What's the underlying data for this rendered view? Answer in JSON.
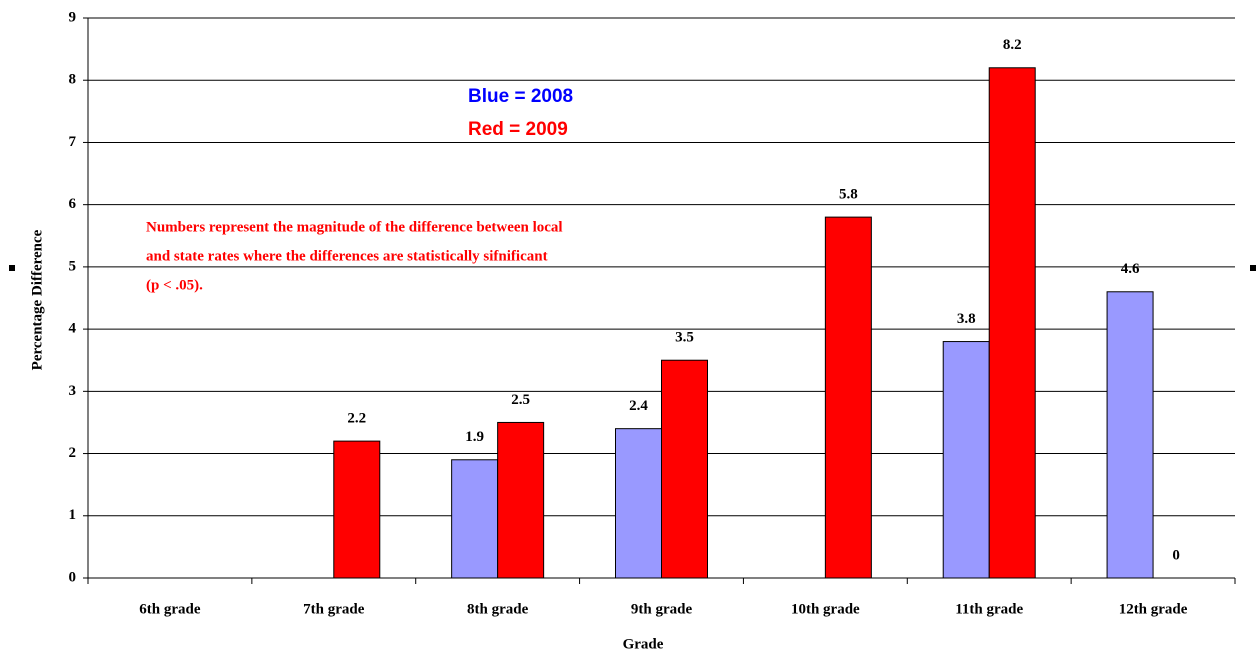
{
  "chart_data": {
    "type": "bar",
    "x_label": "Grade",
    "y_label": "Percentage Difference",
    "categories": [
      "6th grade",
      "7th grade",
      "8th grade",
      "9th grade",
      "10th grade",
      "11th grade",
      "12th grade"
    ],
    "series": [
      {
        "name": "Blue = 2008",
        "color": "#9999ff",
        "values": [
          null,
          null,
          1.9,
          2.4,
          null,
          3.8,
          4.6
        ]
      },
      {
        "name": "Red = 2009",
        "color": "#ff0000",
        "values": [
          null,
          2.2,
          2.5,
          3.5,
          5.8,
          8.2,
          0
        ]
      }
    ],
    "annotation": [
      "Numbers represent the magnitude of the difference between local",
      "and state rates where  the differences are statistically sifnificant",
      "(p < .05)."
    ],
    "ylim": [
      0,
      9
    ],
    "yticks": [
      0,
      1,
      2,
      3,
      4,
      5,
      6,
      7,
      8,
      9
    ],
    "grid": true
  }
}
